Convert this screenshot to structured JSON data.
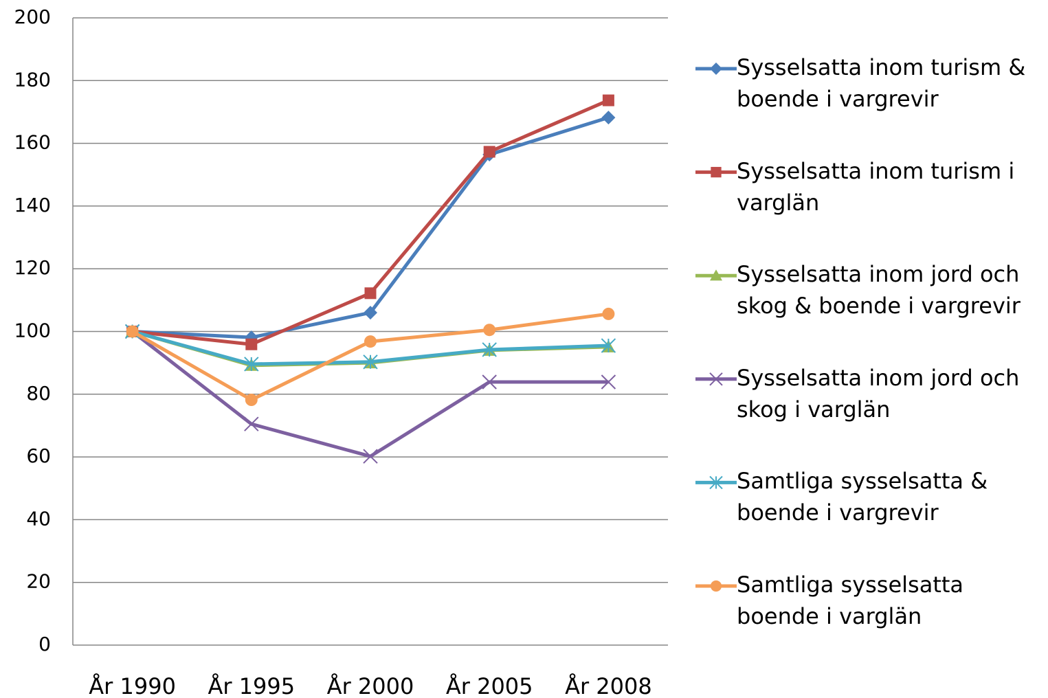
{
  "chart_data": {
    "type": "line",
    "categories": [
      "År 1990",
      "År 1995",
      "År 2000",
      "År 2005",
      "År 2008"
    ],
    "series": [
      {
        "name": "Sysselsatta inom turism & boende i vargrevir",
        "color": "#4a7ebb",
        "marker": "diamond",
        "values": [
          100,
          98.1,
          106,
          156.4,
          168.2
        ]
      },
      {
        "name": "Sysselsatta inom turism i varglän",
        "color": "#be4b48",
        "marker": "square",
        "values": [
          100,
          95.9,
          112.2,
          157.3,
          173.7
        ]
      },
      {
        "name": "Sysselsatta inom jord och skog & boende i vargrevir",
        "color": "#98b954",
        "marker": "triangle",
        "values": [
          100,
          89.2,
          90,
          94,
          95.1
        ]
      },
      {
        "name": "Sysselsatta inom jord och skog i varglän",
        "color": "#7d60a0",
        "marker": "x",
        "values": [
          100,
          70.5,
          60.2,
          83.9,
          83.9
        ]
      },
      {
        "name": "Samtliga sysselsatta & boende i vargrevir",
        "color": "#46aac5",
        "marker": "asterisk",
        "values": [
          100,
          89.6,
          90.3,
          94.2,
          95.5
        ]
      },
      {
        "name": "Samtliga sysselsatta boende i varglän",
        "color": "#f59d56",
        "marker": "circle",
        "values": [
          100,
          78.2,
          96.8,
          100.5,
          105.6
        ]
      }
    ],
    "ylim": [
      0,
      200
    ],
    "yticks": [
      0,
      20,
      40,
      60,
      80,
      100,
      120,
      140,
      160,
      180,
      200
    ],
    "grid": true,
    "legend": "right"
  }
}
